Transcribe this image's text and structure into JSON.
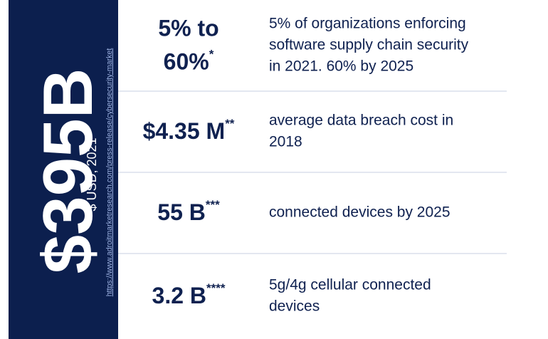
{
  "sidebar": {
    "headline": "$395B",
    "subtitle": "$ USD, 2021",
    "source_url": "https://www.adroitmarketresearch.com/press-release/cybersecurity-market"
  },
  "stats": [
    {
      "value_lines": [
        "5% to",
        "60%"
      ],
      "footnote_mark": "*",
      "description_lines": [
        "5% of organizations enforcing",
        "software supply chain security",
        "in 2021. 60% by 2025"
      ]
    },
    {
      "value_lines": [
        "$4.35 M"
      ],
      "footnote_mark": "**",
      "description_lines": [
        "average data breach cost in",
        "2018"
      ]
    },
    {
      "value_lines": [
        "55 B"
      ],
      "footnote_mark": "***",
      "description_lines": [
        "connected devices by 2025"
      ]
    },
    {
      "value_lines": [
        "3.2 B"
      ],
      "footnote_mark": "****",
      "description_lines": [
        "5g/4g cellular connected",
        "devices"
      ]
    }
  ]
}
